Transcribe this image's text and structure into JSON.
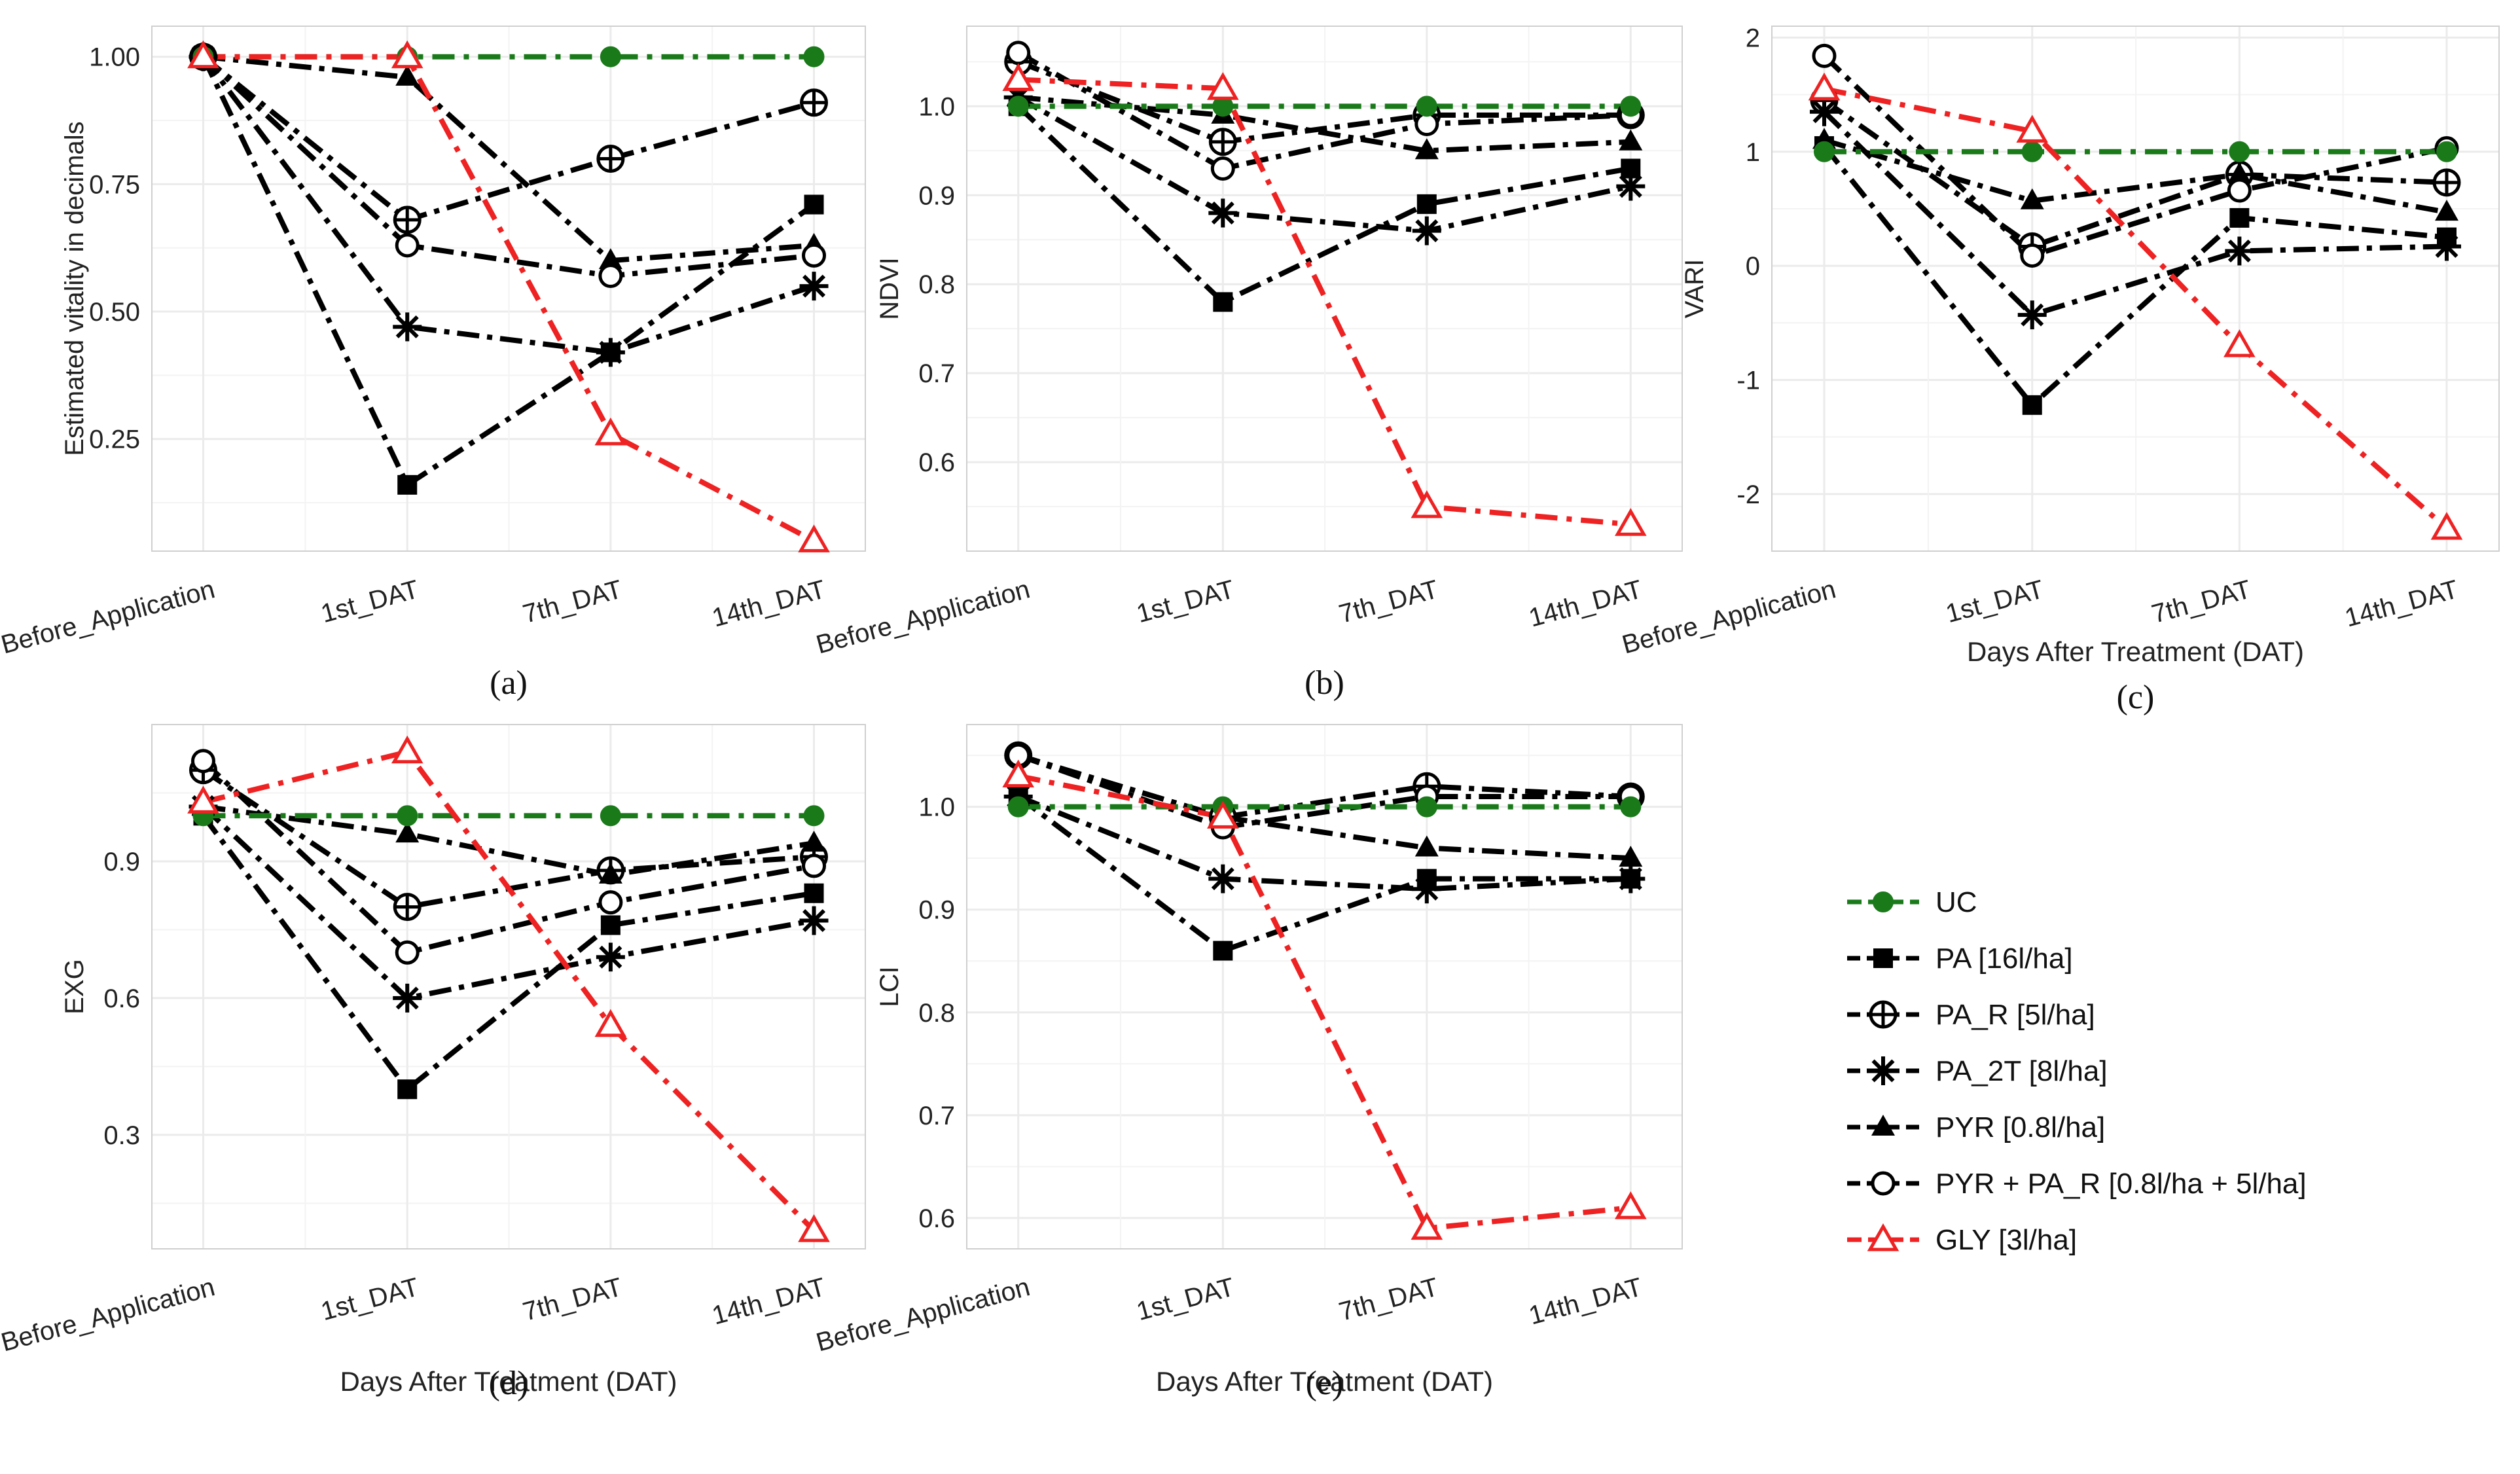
{
  "colors": {
    "UC": "#1a7a1a",
    "GLY": "#ee2222",
    "default": "#000000",
    "grid": "#ebebeb",
    "frame": "#cfcfcf"
  },
  "categories": [
    "Before_Application",
    "1st_DAT",
    "7th_DAT",
    "14th_DAT"
  ],
  "legend": [
    {
      "key": "UC",
      "label": "UC",
      "marker": "filled-circle",
      "dash": "dashed-green"
    },
    {
      "key": "PA",
      "label": "PA [16l/ha]",
      "marker": "filled-square",
      "dash": "dashed"
    },
    {
      "key": "PA_R",
      "label": "PA_R [5l/ha]",
      "marker": "circle-plus",
      "dash": "dashed"
    },
    {
      "key": "PA_2T",
      "label": "PA_2T [8l/ha]",
      "marker": "asterisk",
      "dash": "dashed"
    },
    {
      "key": "PYR",
      "label": "PYR [0.8l/ha]",
      "marker": "filled-triangle",
      "dash": "dashed"
    },
    {
      "key": "PYR_PA_R",
      "label": "PYR + PA_R [0.8l/ha + 5l/ha]",
      "marker": "open-circle",
      "dash": "dashed"
    },
    {
      "key": "GLY",
      "label": "GLY [3l/ha]",
      "marker": "open-triangle",
      "dash": "dashed-red"
    }
  ],
  "chart_data": [
    {
      "id": "a",
      "type": "line",
      "caption": "(a)",
      "xlabel": "",
      "ylabel": "Estimated vitality in decimals",
      "ylim": [
        0.03,
        1.06
      ],
      "yticks": [
        0.25,
        0.5,
        0.75,
        1.0
      ],
      "ytick_labels": [
        "0.25",
        "0.50",
        "0.75",
        "1.00"
      ],
      "series": [
        {
          "key": "UC",
          "values": [
            1.0,
            1.0,
            1.0,
            1.0
          ]
        },
        {
          "key": "PA",
          "values": [
            1.0,
            0.16,
            0.42,
            0.71
          ]
        },
        {
          "key": "PA_R",
          "values": [
            1.0,
            0.68,
            0.8,
            0.91
          ]
        },
        {
          "key": "PA_2T",
          "values": [
            1.0,
            0.47,
            0.42,
            0.55
          ]
        },
        {
          "key": "PYR",
          "values": [
            1.0,
            0.96,
            0.6,
            0.63
          ]
        },
        {
          "key": "PYR_PA_R",
          "values": [
            1.0,
            0.63,
            0.57,
            0.61
          ]
        },
        {
          "key": "GLY",
          "values": [
            1.0,
            1.0,
            0.26,
            0.05
          ]
        }
      ]
    },
    {
      "id": "b",
      "type": "line",
      "caption": "(b)",
      "xlabel": "",
      "ylabel": "NDVI",
      "ylim": [
        0.5,
        1.09
      ],
      "yticks": [
        0.6,
        0.7,
        0.8,
        0.9,
        1.0
      ],
      "ytick_labels": [
        "0.6",
        "0.7",
        "0.8",
        "0.9",
        "1.0"
      ],
      "series": [
        {
          "key": "UC",
          "values": [
            1.0,
            1.0,
            1.0,
            1.0
          ]
        },
        {
          "key": "PA",
          "values": [
            1.0,
            0.78,
            0.89,
            0.93
          ]
        },
        {
          "key": "PA_R",
          "values": [
            1.05,
            0.96,
            0.99,
            0.99
          ]
        },
        {
          "key": "PA_2T",
          "values": [
            1.01,
            0.88,
            0.86,
            0.91
          ]
        },
        {
          "key": "PYR",
          "values": [
            1.01,
            0.99,
            0.95,
            0.96
          ]
        },
        {
          "key": "PYR_PA_R",
          "values": [
            1.06,
            0.93,
            0.98,
            0.99
          ]
        },
        {
          "key": "GLY",
          "values": [
            1.03,
            1.02,
            0.55,
            0.53
          ]
        }
      ]
    },
    {
      "id": "c",
      "type": "line",
      "caption": "(c)",
      "xlabel": "Days  After Treatment (DAT)",
      "ylabel": "VARI",
      "ylim": [
        -2.5,
        2.1
      ],
      "yticks": [
        -2,
        -1,
        0,
        1,
        2
      ],
      "ytick_labels": [
        "-2",
        "-1",
        "0",
        "1",
        "2"
      ],
      "series": [
        {
          "key": "UC",
          "values": [
            1.0,
            1.0,
            1.0,
            1.0
          ]
        },
        {
          "key": "PA",
          "values": [
            1.05,
            -1.22,
            0.42,
            0.25
          ]
        },
        {
          "key": "PA_R",
          "values": [
            1.45,
            0.17,
            0.8,
            0.73
          ]
        },
        {
          "key": "PA_2T",
          "values": [
            1.35,
            -0.43,
            0.13,
            0.17
          ]
        },
        {
          "key": "PYR",
          "values": [
            1.1,
            0.57,
            0.8,
            0.47
          ]
        },
        {
          "key": "PYR_PA_R",
          "values": [
            1.84,
            0.09,
            0.66,
            1.03
          ]
        },
        {
          "key": "GLY",
          "values": [
            1.55,
            1.18,
            -0.7,
            -2.3
          ]
        }
      ]
    },
    {
      "id": "d",
      "type": "line",
      "caption": "(d)",
      "xlabel": "Days  After Treatment (DAT)",
      "ylabel": "EXG",
      "ylim": [
        0.05,
        1.2
      ],
      "yticks": [
        0.3,
        0.6,
        0.9
      ],
      "ytick_labels": [
        "0.3",
        "0.6",
        "0.9"
      ],
      "series": [
        {
          "key": "UC",
          "values": [
            1.0,
            1.0,
            1.0,
            1.0
          ]
        },
        {
          "key": "PA",
          "values": [
            1.0,
            0.4,
            0.76,
            0.83
          ]
        },
        {
          "key": "PA_R",
          "values": [
            1.1,
            0.8,
            0.88,
            0.91
          ]
        },
        {
          "key": "PA_2T",
          "values": [
            1.02,
            0.6,
            0.69,
            0.77
          ]
        },
        {
          "key": "PYR",
          "values": [
            1.02,
            0.96,
            0.87,
            0.94
          ]
        },
        {
          "key": "PYR_PA_R",
          "values": [
            1.12,
            0.7,
            0.81,
            0.89
          ]
        },
        {
          "key": "GLY",
          "values": [
            1.03,
            1.14,
            0.54,
            0.09
          ]
        }
      ]
    },
    {
      "id": "e",
      "type": "line",
      "caption": "(e)",
      "xlabel": "Days  After Treatment (DAT)",
      "ylabel": "LCI",
      "ylim": [
        0.57,
        1.08
      ],
      "yticks": [
        0.6,
        0.7,
        0.8,
        0.9,
        1.0
      ],
      "ytick_labels": [
        "0.6",
        "0.7",
        "0.8",
        "0.9",
        "1.0"
      ],
      "series": [
        {
          "key": "UC",
          "values": [
            1.0,
            1.0,
            1.0,
            1.0
          ]
        },
        {
          "key": "PA",
          "values": [
            1.01,
            0.86,
            0.93,
            0.93
          ]
        },
        {
          "key": "PA_R",
          "values": [
            1.05,
            0.99,
            1.02,
            1.01
          ]
        },
        {
          "key": "PA_2T",
          "values": [
            1.01,
            0.93,
            0.92,
            0.93
          ]
        },
        {
          "key": "PYR",
          "values": [
            1.05,
            0.99,
            0.96,
            0.95
          ]
        },
        {
          "key": "PYR_PA_R",
          "values": [
            1.05,
            0.98,
            1.01,
            1.01
          ]
        },
        {
          "key": "GLY",
          "values": [
            1.03,
            0.99,
            0.59,
            0.61
          ]
        }
      ]
    }
  ]
}
